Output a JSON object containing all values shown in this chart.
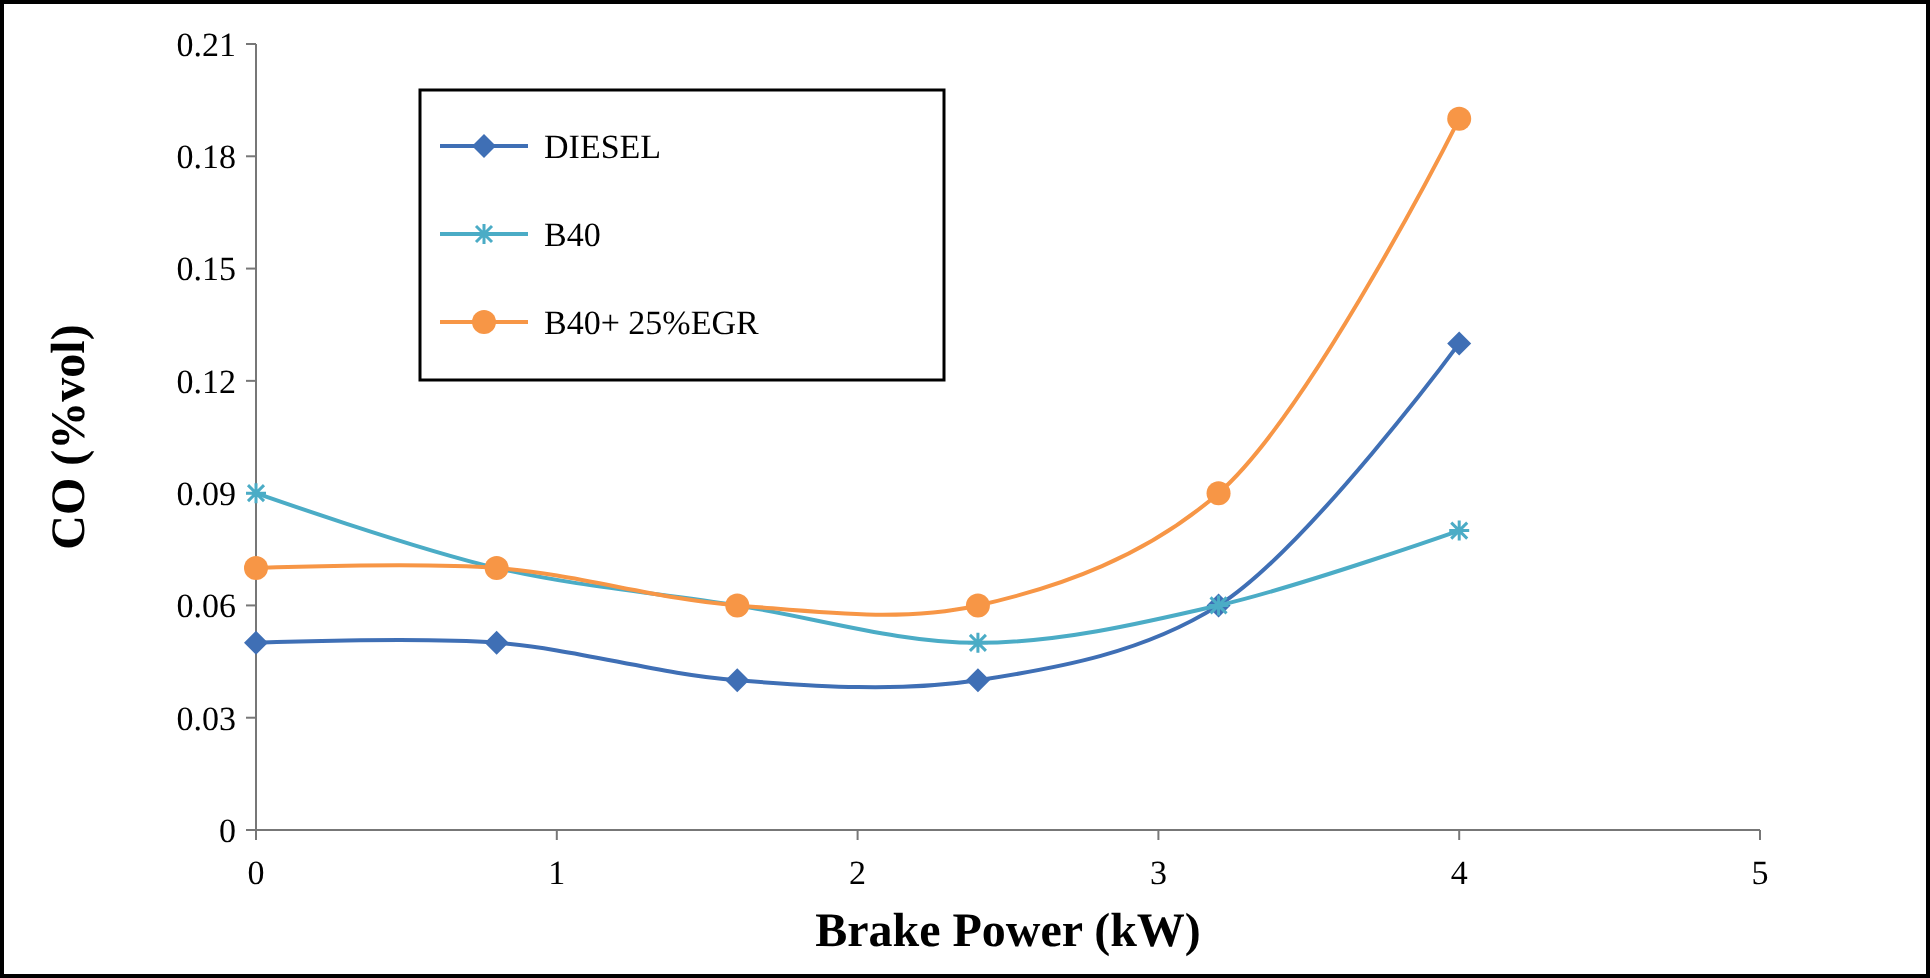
{
  "chart_data": {
    "type": "line",
    "xlabel": "Brake Power (kW)",
    "ylabel": "CO (%vol)",
    "xlim": [
      0,
      5
    ],
    "xticks": [
      0,
      1,
      2,
      3,
      4,
      5
    ],
    "ylim": [
      0,
      0.21
    ],
    "yticks": [
      0,
      0.03,
      0.06,
      0.09,
      0.12,
      0.15,
      0.18,
      0.21
    ],
    "grid": false,
    "legend": "top left",
    "x": [
      0,
      0.8,
      1.6,
      2.4,
      3.2,
      4
    ],
    "series": [
      {
        "name": "DIESEL",
        "color": "#3f6fb5",
        "marker": "diamond",
        "values": [
          0.05,
          0.05,
          0.04,
          0.04,
          0.06,
          0.13
        ]
      },
      {
        "name": "B40",
        "color": "#4bacc6",
        "marker": "cross",
        "values": [
          0.09,
          0.07,
          0.06,
          0.05,
          0.06,
          0.08
        ]
      },
      {
        "name": "B40+ 25%EGR",
        "color": "#f79646",
        "marker": "circle",
        "values": [
          0.07,
          0.07,
          0.06,
          0.06,
          0.09,
          0.19
        ]
      }
    ]
  }
}
